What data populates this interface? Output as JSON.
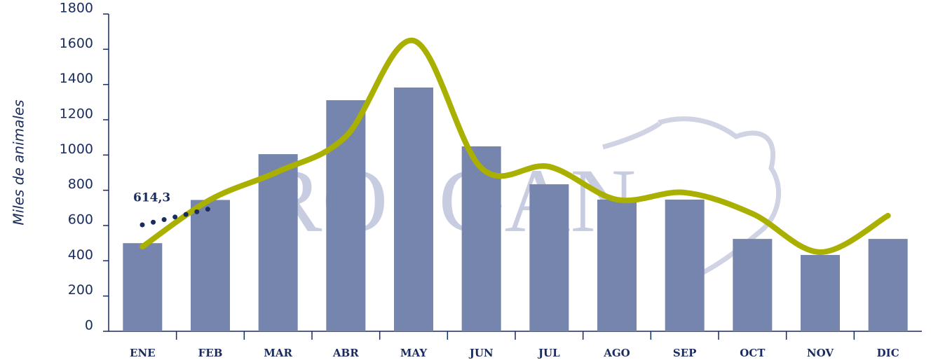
{
  "chart_data": {
    "type": "bar",
    "y_label": "Miles de animales",
    "watermark": "ROSGAN",
    "annotation": "614,3",
    "categories": [
      "ENE",
      "FEB",
      "MAR",
      "ABR",
      "MAY",
      "JUN",
      "JUL",
      "AGO",
      "SEP",
      "OCT",
      "NOV",
      "DIC"
    ],
    "series": [
      {
        "type": "bar",
        "color": "#7585ad",
        "values": [
          500,
          745,
          1005,
          1311,
          1383,
          1049,
          834,
          747,
          747,
          524,
          433,
          524
        ]
      },
      {
        "type": "line",
        "color": "#aab000",
        "values": [
          480,
          747,
          906,
          1105,
          1649,
          926,
          934,
          747,
          787,
          667,
          449,
          656
        ]
      }
    ],
    "ylim": [
      0,
      1800
    ],
    "yticks": [
      0,
      200,
      400,
      600,
      800,
      1000,
      1200,
      1400,
      1600,
      1800
    ]
  }
}
